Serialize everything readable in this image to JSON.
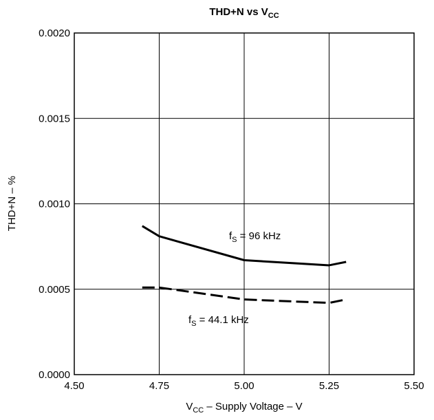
{
  "chart_data": {
    "type": "line",
    "title": {
      "main": "THD+N vs V",
      "sub": "CC"
    },
    "xlabel": {
      "prefix": "V",
      "sub": "CC",
      "suffix": " – Supply Voltage – V"
    },
    "ylabel": "THD+N – %",
    "xlim": [
      4.5,
      5.5
    ],
    "ylim": [
      0,
      0.002
    ],
    "xticks": [
      4.5,
      4.75,
      5.0,
      5.25,
      5.5
    ],
    "xtick_labels": [
      "4.50",
      "4.75",
      "5.00",
      "5.25",
      "5.50"
    ],
    "yticks": [
      0,
      0.0005,
      0.001,
      0.0015,
      0.002
    ],
    "ytick_labels": [
      "0.0000",
      "0.0005",
      "0.0010",
      "0.0015",
      "0.0020"
    ],
    "grid": true,
    "series": [
      {
        "label": {
          "prefix": "f",
          "sub": "S",
          "suffix": " = 96 kHz"
        },
        "style": "solid",
        "x": [
          4.7,
          4.75,
          5.0,
          5.25,
          5.3
        ],
        "y": [
          0.00087,
          0.00081,
          0.00067,
          0.00064,
          0.00066
        ]
      },
      {
        "label": {
          "prefix": "f",
          "sub": "S",
          "suffix": " = 44.1 kHz"
        },
        "style": "dashed",
        "x": [
          4.7,
          4.75,
          5.0,
          5.25,
          5.3
        ],
        "y": [
          0.00051,
          0.00051,
          0.00044,
          0.00042,
          0.00044
        ]
      }
    ]
  }
}
